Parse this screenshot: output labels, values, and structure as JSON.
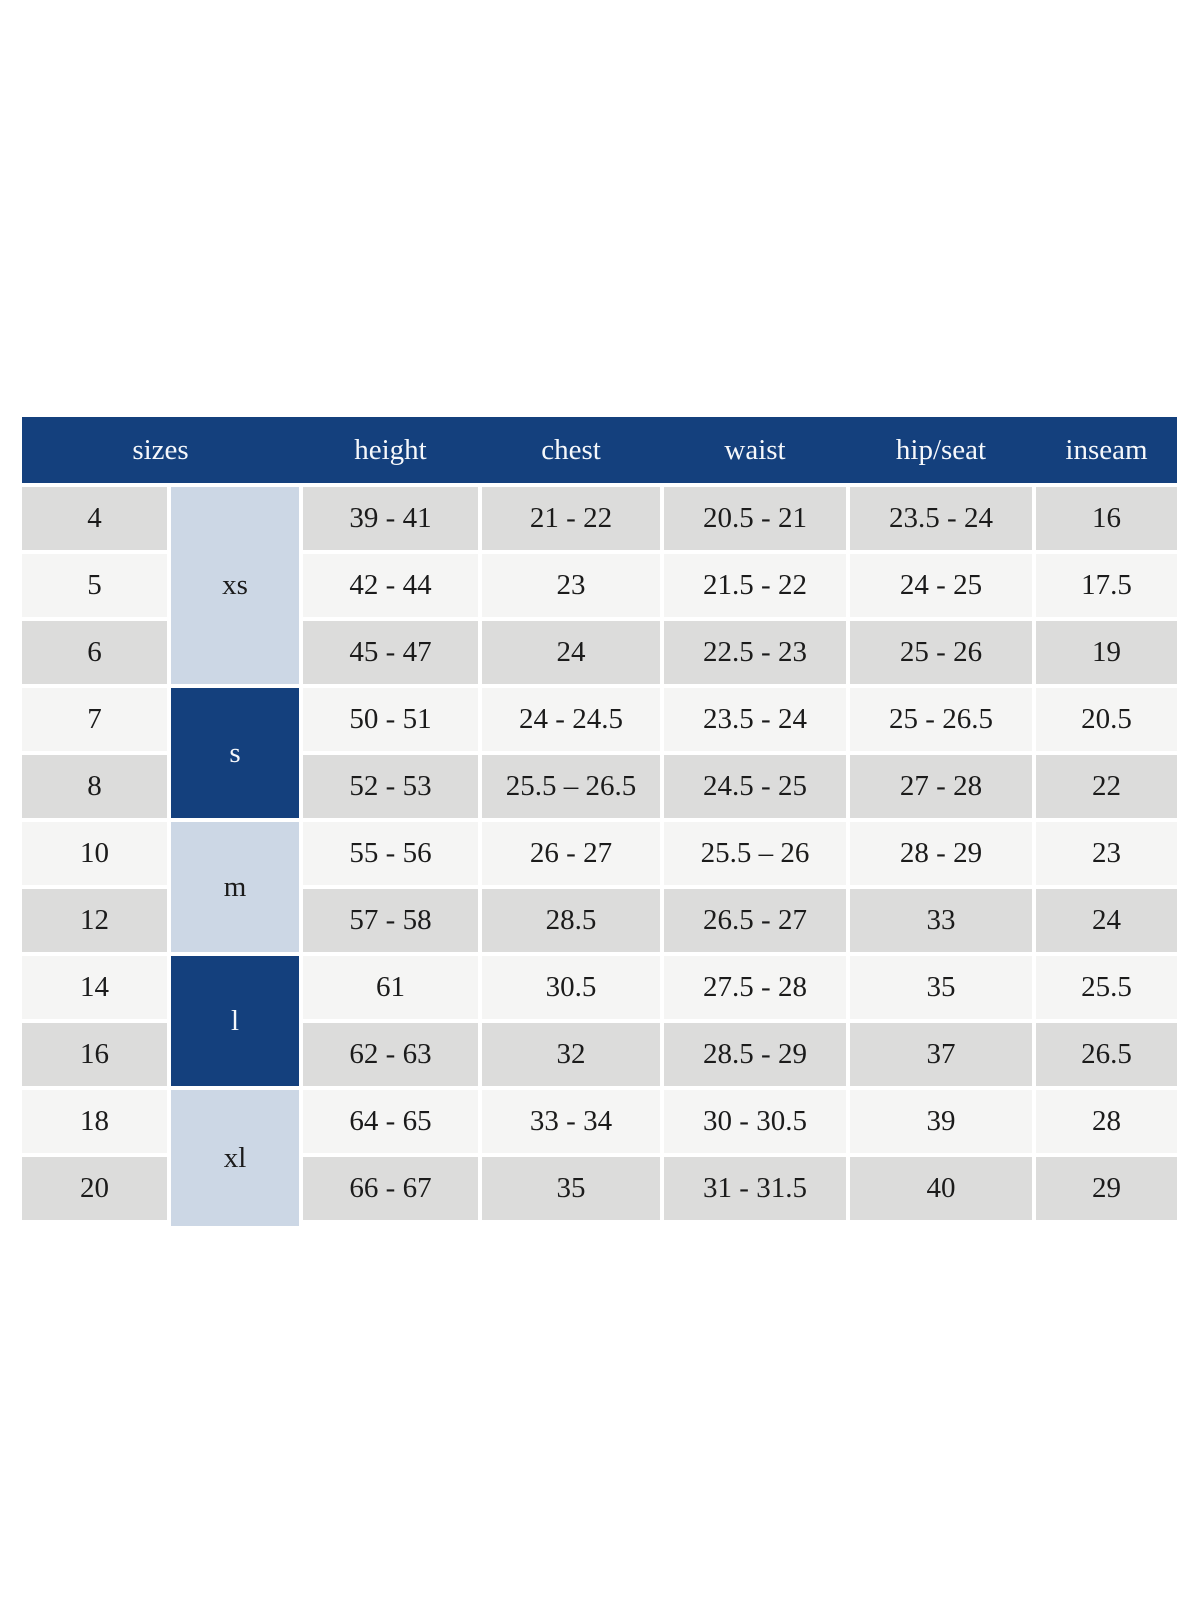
{
  "chart_data": {
    "type": "table",
    "headers": [
      "sizes",
      "height",
      "chest",
      "waist",
      "hip/seat",
      "inseam"
    ],
    "groups": [
      {
        "label": "xs",
        "spans_sizes": [
          "4",
          "5",
          "6"
        ]
      },
      {
        "label": "s",
        "spans_sizes": [
          "7",
          "8"
        ]
      },
      {
        "label": "m",
        "spans_sizes": [
          "10",
          "12"
        ]
      },
      {
        "label": "l",
        "spans_sizes": [
          "14",
          "16"
        ]
      },
      {
        "label": "xl",
        "spans_sizes": [
          "18",
          "20"
        ]
      }
    ],
    "rows": [
      {
        "size": "4",
        "height": "39 - 41",
        "chest": "21 - 22",
        "waist": "20.5 - 21",
        "hip_seat": "23.5 - 24",
        "inseam": "16"
      },
      {
        "size": "5",
        "height": "42 - 44",
        "chest": "23",
        "waist": "21.5 - 22",
        "hip_seat": "24 - 25",
        "inseam": "17.5"
      },
      {
        "size": "6",
        "height": "45 - 47",
        "chest": "24",
        "waist": "22.5 - 23",
        "hip_seat": "25 - 26",
        "inseam": "19"
      },
      {
        "size": "7",
        "height": "50 - 51",
        "chest": "24 - 24.5",
        "waist": "23.5 - 24",
        "hip_seat": "25 - 26.5",
        "inseam": "20.5"
      },
      {
        "size": "8",
        "height": "52 - 53",
        "chest": "25.5 – 26.5",
        "waist": "24.5 - 25",
        "hip_seat": "27 - 28",
        "inseam": "22"
      },
      {
        "size": "10",
        "height": "55 - 56",
        "chest": "26 - 27",
        "waist": "25.5 – 26",
        "hip_seat": "28 - 29",
        "inseam": "23"
      },
      {
        "size": "12",
        "height": "57 - 58",
        "chest": "28.5",
        "waist": "26.5 - 27",
        "hip_seat": "33",
        "inseam": "24"
      },
      {
        "size": "14",
        "height": "61",
        "chest": "30.5",
        "waist": "27.5 - 28",
        "hip_seat": "35",
        "inseam": "25.5"
      },
      {
        "size": "16",
        "height": "62 - 63",
        "chest": "32",
        "waist": "28.5 - 29",
        "hip_seat": "37",
        "inseam": "26.5"
      },
      {
        "size": "18",
        "height": "64 - 65",
        "chest": "33 - 34",
        "waist": "30 - 30.5",
        "hip_seat": "39",
        "inseam": "28"
      },
      {
        "size": "20",
        "height": "66 - 67",
        "chest": "35",
        "waist": "31 - 31.5",
        "hip_seat": "40",
        "inseam": "29"
      }
    ],
    "colors": {
      "header_bg": "#14407d",
      "header_text": "#f6f8fb",
      "group_dark_bg": "#14407d",
      "group_light_bg": "#ccd7e5",
      "row_gray": "#dcdcdb",
      "row_light": "#f5f5f4",
      "cell_text": "#1b1b1b",
      "page_bg": "#ffffff"
    }
  }
}
